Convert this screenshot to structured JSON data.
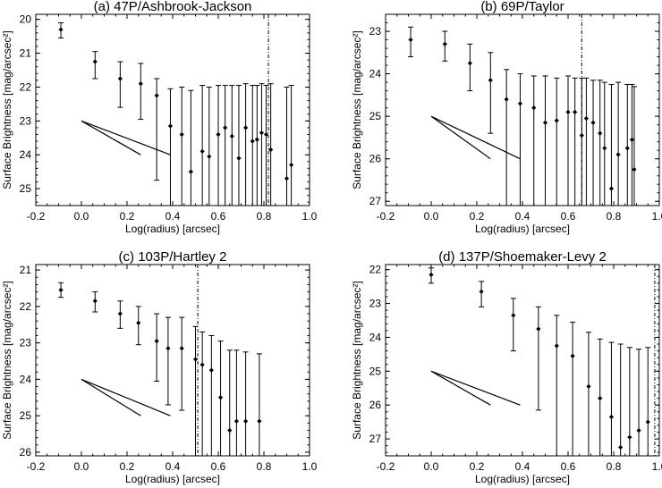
{
  "chart_data": [
    {
      "type": "scatter",
      "title": "(a) 47P/Ashbrook-Jackson",
      "xlabel": "Log(radius) [arcsec]",
      "ylabel": "Surface Brightness [mag/arcsec²]",
      "xlim": [
        -0.2,
        1.0
      ],
      "ylim": [
        25.5,
        19.85
      ],
      "y_inverted": true,
      "xticks": [
        "-0.2",
        "0.0",
        "0.2",
        "0.4",
        "0.6",
        "0.8",
        "1.0"
      ],
      "yticks": [
        "20",
        "21",
        "22",
        "23",
        "24",
        "25"
      ],
      "grid": false,
      "vline_x": 0.82,
      "slope_lines": [
        {
          "x": [
            0.0,
            0.26
          ],
          "y": [
            23.0,
            24.0
          ]
        },
        {
          "x": [
            0.0,
            0.39
          ],
          "y": [
            23.0,
            24.0
          ]
        }
      ],
      "points": [
        {
          "x": -0.09,
          "y": 20.3,
          "lo": 20.1,
          "hi": 20.55
        },
        {
          "x": 0.06,
          "y": 21.25,
          "lo": 20.95,
          "hi": 21.75
        },
        {
          "x": 0.17,
          "y": 21.75,
          "lo": 21.25,
          "hi": 22.6
        },
        {
          "x": 0.26,
          "y": 21.9,
          "lo": 21.3,
          "hi": 22.95
        },
        {
          "x": 0.33,
          "y": 22.25,
          "lo": 21.75,
          "hi": 24.75
        },
        {
          "x": 0.39,
          "y": 23.15,
          "lo": 22.05,
          "hi": 25.5
        },
        {
          "x": 0.44,
          "y": 23.4,
          "lo": 22.0,
          "hi": 25.5
        },
        {
          "x": 0.48,
          "y": 24.5,
          "lo": 22.1,
          "hi": 25.5
        },
        {
          "x": 0.53,
          "y": 23.9,
          "lo": 21.95,
          "hi": 25.5
        },
        {
          "x": 0.56,
          "y": 24.05,
          "lo": 22.0,
          "hi": 25.5
        },
        {
          "x": 0.6,
          "y": 23.4,
          "lo": 21.95,
          "hi": 25.5
        },
        {
          "x": 0.63,
          "y": 23.2,
          "lo": 21.95,
          "hi": 25.5
        },
        {
          "x": 0.66,
          "y": 23.45,
          "lo": 21.95,
          "hi": 25.5
        },
        {
          "x": 0.69,
          "y": 24.1,
          "lo": 21.95,
          "hi": 25.5
        },
        {
          "x": 0.72,
          "y": 23.2,
          "lo": 21.9,
          "hi": 25.5
        },
        {
          "x": 0.75,
          "y": 23.6,
          "lo": 21.95,
          "hi": 25.5
        },
        {
          "x": 0.77,
          "y": 23.55,
          "lo": 21.95,
          "hi": 25.5
        },
        {
          "x": 0.79,
          "y": 23.35,
          "lo": 21.9,
          "hi": 25.5
        },
        {
          "x": 0.81,
          "y": 23.4,
          "lo": 21.95,
          "hi": 25.5
        },
        {
          "x": 0.83,
          "y": 23.85,
          "lo": 21.9,
          "hi": 25.5
        },
        {
          "x": 0.9,
          "y": 24.7,
          "lo": 22.0,
          "hi": 25.5
        },
        {
          "x": 0.92,
          "y": 24.3,
          "lo": 21.95,
          "hi": 25.5
        }
      ]
    },
    {
      "type": "scatter",
      "title": "(b) 69P/Taylor",
      "xlabel": "Log(radius) [arcsec]",
      "ylabel": "Surface Brightness [mag/arcsec²]",
      "xlim": [
        -0.2,
        1.0
      ],
      "ylim": [
        27.1,
        22.6
      ],
      "y_inverted": true,
      "xticks": [
        "-0.2",
        "0.0",
        "0.2",
        "0.4",
        "0.6",
        "0.8",
        "1.0"
      ],
      "yticks": [
        "23",
        "24",
        "25",
        "26",
        "27"
      ],
      "grid": false,
      "vline_x": 0.66,
      "slope_lines": [
        {
          "x": [
            0.0,
            0.26
          ],
          "y": [
            25.0,
            26.0
          ]
        },
        {
          "x": [
            0.0,
            0.39
          ],
          "y": [
            25.0,
            26.0
          ]
        }
      ],
      "points": [
        {
          "x": -0.09,
          "y": 23.2,
          "lo": 22.9,
          "hi": 23.6
        },
        {
          "x": 0.06,
          "y": 23.3,
          "lo": 23.0,
          "hi": 23.7
        },
        {
          "x": 0.17,
          "y": 23.75,
          "lo": 23.3,
          "hi": 24.4
        },
        {
          "x": 0.26,
          "y": 24.15,
          "lo": 23.5,
          "hi": 25.4
        },
        {
          "x": 0.33,
          "y": 24.6,
          "lo": 23.9,
          "hi": 27.1
        },
        {
          "x": 0.39,
          "y": 24.7,
          "lo": 24.0,
          "hi": 27.1
        },
        {
          "x": 0.45,
          "y": 24.8,
          "lo": 24.05,
          "hi": 27.1
        },
        {
          "x": 0.5,
          "y": 25.15,
          "lo": 24.05,
          "hi": 27.1
        },
        {
          "x": 0.55,
          "y": 25.1,
          "lo": 24.1,
          "hi": 27.1
        },
        {
          "x": 0.6,
          "y": 24.9,
          "lo": 24.05,
          "hi": 27.1
        },
        {
          "x": 0.63,
          "y": 24.9,
          "lo": 24.1,
          "hi": 27.1
        },
        {
          "x": 0.66,
          "y": 25.45,
          "lo": 24.1,
          "hi": 27.1
        },
        {
          "x": 0.68,
          "y": 25.05,
          "lo": 24.1,
          "hi": 27.1
        },
        {
          "x": 0.71,
          "y": 25.15,
          "lo": 24.15,
          "hi": 27.1
        },
        {
          "x": 0.74,
          "y": 25.4,
          "lo": 24.15,
          "hi": 27.1
        },
        {
          "x": 0.76,
          "y": 25.75,
          "lo": 24.2,
          "hi": 27.1
        },
        {
          "x": 0.79,
          "y": 26.7,
          "lo": 24.25,
          "hi": 27.1
        },
        {
          "x": 0.82,
          "y": 25.9,
          "lo": 24.2,
          "hi": 27.1
        },
        {
          "x": 0.86,
          "y": 25.75,
          "lo": 24.25,
          "hi": 27.1
        },
        {
          "x": 0.88,
          "y": 25.55,
          "lo": 24.25,
          "hi": 27.1
        },
        {
          "x": 0.89,
          "y": 26.25,
          "lo": 24.3,
          "hi": 27.1
        }
      ]
    },
    {
      "type": "scatter",
      "title": "(c) 103P/Hartley 2",
      "xlabel": "Log(radius) [arcsec]",
      "ylabel": "Surface Brightness [mag/arcsec²]",
      "xlim": [
        -0.2,
        1.0
      ],
      "ylim": [
        26.1,
        20.85
      ],
      "y_inverted": true,
      "xticks": [
        "-0.2",
        "0.0",
        "0.2",
        "0.4",
        "0.6",
        "0.8",
        "1.0"
      ],
      "yticks": [
        "21",
        "22",
        "23",
        "24",
        "25",
        "26"
      ],
      "grid": false,
      "vline_x": 0.51,
      "slope_lines": [
        {
          "x": [
            0.0,
            0.26
          ],
          "y": [
            24.0,
            25.0
          ]
        },
        {
          "x": [
            0.0,
            0.39
          ],
          "y": [
            24.0,
            25.0
          ]
        }
      ],
      "points": [
        {
          "x": -0.09,
          "y": 21.55,
          "lo": 21.35,
          "hi": 21.75
        },
        {
          "x": 0.06,
          "y": 21.85,
          "lo": 21.6,
          "hi": 22.15
        },
        {
          "x": 0.17,
          "y": 22.2,
          "lo": 21.85,
          "hi": 22.6
        },
        {
          "x": 0.25,
          "y": 22.45,
          "lo": 22.0,
          "hi": 23.05
        },
        {
          "x": 0.33,
          "y": 22.95,
          "lo": 22.2,
          "hi": 24.05
        },
        {
          "x": 0.38,
          "y": 23.15,
          "lo": 22.3,
          "hi": 24.7
        },
        {
          "x": 0.44,
          "y": 23.15,
          "lo": 22.3,
          "hi": 24.85
        },
        {
          "x": 0.5,
          "y": 23.45,
          "lo": 22.55,
          "hi": 26.1
        },
        {
          "x": 0.53,
          "y": 23.6,
          "lo": 22.7,
          "hi": 26.1
        },
        {
          "x": 0.57,
          "y": 23.75,
          "lo": 22.8,
          "hi": 26.1
        },
        {
          "x": 0.61,
          "y": 24.5,
          "lo": 22.95,
          "hi": 26.1
        },
        {
          "x": 0.65,
          "y": 25.4,
          "lo": 23.2,
          "hi": 26.1
        },
        {
          "x": 0.68,
          "y": 25.15,
          "lo": 23.2,
          "hi": 26.1
        },
        {
          "x": 0.72,
          "y": 25.15,
          "lo": 23.25,
          "hi": 26.1
        },
        {
          "x": 0.78,
          "y": 25.15,
          "lo": 23.3,
          "hi": 26.1
        }
      ],
      "draw_markers_from": 0
    },
    {
      "type": "scatter",
      "title": "(d) 137P/Shoemaker-Levy 2",
      "xlabel": "Log(radius) [arcsec]",
      "ylabel": "Surface Brightness [mag/arcsec²]",
      "xlim": [
        -0.2,
        1.0
      ],
      "ylim": [
        27.5,
        21.85
      ],
      "y_inverted": true,
      "xticks": [
        "-0.2",
        "0.0",
        "0.2",
        "0.4",
        "0.6",
        "0.8",
        "1.0"
      ],
      "yticks": [
        "22",
        "23",
        "24",
        "25",
        "26",
        "27"
      ],
      "grid": false,
      "vline_x": 0.98,
      "slope_lines": [
        {
          "x": [
            0.0,
            0.26
          ],
          "y": [
            25.0,
            26.0
          ]
        },
        {
          "x": [
            0.0,
            0.39
          ],
          "y": [
            25.0,
            26.0
          ]
        }
      ],
      "points": [
        {
          "x": 0.0,
          "y": 22.15,
          "lo": 21.95,
          "hi": 22.4
        },
        {
          "x": 0.22,
          "y": 22.65,
          "lo": 22.35,
          "hi": 23.1
        },
        {
          "x": 0.36,
          "y": 23.35,
          "lo": 22.85,
          "hi": 24.4
        },
        {
          "x": 0.47,
          "y": 23.75,
          "lo": 23.1,
          "hi": 26.15
        },
        {
          "x": 0.55,
          "y": 24.25,
          "lo": 23.35,
          "hi": 27.5
        },
        {
          "x": 0.62,
          "y": 24.55,
          "lo": 23.55,
          "hi": 27.5
        },
        {
          "x": 0.69,
          "y": 25.45,
          "lo": 23.85,
          "hi": 27.5
        },
        {
          "x": 0.74,
          "y": 25.8,
          "lo": 24.05,
          "hi": 27.5
        },
        {
          "x": 0.79,
          "y": 26.35,
          "lo": 24.15,
          "hi": 27.5
        },
        {
          "x": 0.83,
          "y": 27.25,
          "lo": 24.2,
          "hi": 27.5
        },
        {
          "x": 0.87,
          "y": 26.95,
          "lo": 24.3,
          "hi": 27.5
        },
        {
          "x": 0.91,
          "y": 26.75,
          "lo": 24.35,
          "hi": 27.5
        },
        {
          "x": 0.95,
          "y": 26.5,
          "lo": 24.3,
          "hi": 27.5
        }
      ]
    }
  ]
}
